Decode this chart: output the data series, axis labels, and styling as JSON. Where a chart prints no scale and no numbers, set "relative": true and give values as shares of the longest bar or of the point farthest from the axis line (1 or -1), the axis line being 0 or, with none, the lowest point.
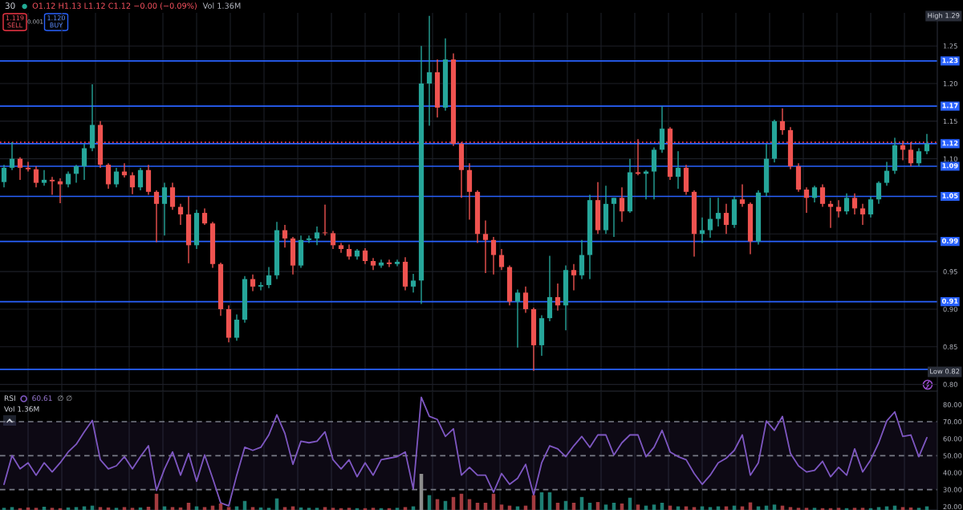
{
  "chart_data": [
    {
      "type": "candlestick",
      "title": "30",
      "annotations": [
        "O1.12 H1.13 L1.12 C1.12 −0.00 (−0.09%)",
        "Vol 1.36M",
        "1.119",
        "SELL",
        "0.001",
        "1.120",
        "BUY",
        "High 1.29",
        "Low 0.82"
      ],
      "categories": [
        null,
        null,
        null,
        null,
        null,
        null,
        null,
        null,
        null,
        null,
        null,
        null,
        null,
        null,
        null,
        null,
        null,
        null,
        null,
        null,
        null,
        null,
        null,
        null,
        null,
        null,
        null,
        null,
        null,
        null,
        null,
        null,
        null,
        null,
        null,
        null,
        null,
        null,
        null,
        null,
        null,
        null,
        null,
        null,
        null,
        null,
        null,
        null,
        null,
        null,
        null,
        null,
        null,
        null,
        null,
        null,
        null,
        null,
        null,
        null,
        null,
        null,
        null,
        null,
        null,
        null,
        null,
        null,
        null,
        null,
        null,
        null,
        null,
        null,
        null,
        null,
        null,
        null,
        null,
        null,
        null,
        null,
        null,
        null,
        null,
        null,
        null,
        null,
        null,
        null,
        null,
        null,
        null,
        null,
        null,
        null,
        null,
        null,
        null,
        null,
        null,
        null,
        null,
        null,
        null,
        null,
        null,
        null,
        null,
        null,
        null,
        null,
        null,
        null,
        null,
        null
      ],
      "ohlc": [
        [
          1.069,
          1.092,
          1.062,
          1.088
        ],
        [
          1.088,
          1.122,
          1.085,
          1.1
        ],
        [
          1.1,
          1.102,
          1.072,
          1.088
        ],
        [
          1.088,
          1.096,
          1.083,
          1.086
        ],
        [
          1.086,
          1.09,
          1.062,
          1.068
        ],
        [
          1.068,
          1.085,
          1.064,
          1.072
        ],
        [
          1.072,
          1.076,
          1.052,
          1.07
        ],
        [
          1.07,
          1.074,
          1.041,
          1.066
        ],
        [
          1.066,
          1.083,
          1.062,
          1.08
        ],
        [
          1.08,
          1.092,
          1.068,
          1.09
        ],
        [
          1.09,
          1.12,
          1.072,
          1.114
        ],
        [
          1.114,
          1.199,
          1.11,
          1.145
        ],
        [
          1.145,
          1.15,
          1.088,
          1.092
        ],
        [
          1.092,
          1.094,
          1.06,
          1.066
        ],
        [
          1.066,
          1.088,
          1.062,
          1.083
        ],
        [
          1.083,
          1.094,
          1.075,
          1.078
        ],
        [
          1.078,
          1.082,
          1.053,
          1.062
        ],
        [
          1.062,
          1.088,
          1.058,
          1.085
        ],
        [
          1.085,
          1.092,
          1.052,
          1.056
        ],
        [
          1.056,
          1.058,
          0.989,
          1.04
        ],
        [
          1.04,
          1.068,
          0.998,
          1.062
        ],
        [
          1.062,
          1.068,
          1.032,
          1.036
        ],
        [
          1.036,
          1.04,
          1.012,
          1.026
        ],
        [
          1.026,
          1.05,
          0.961,
          0.985
        ],
        [
          0.985,
          1.032,
          0.98,
          1.028
        ],
        [
          1.028,
          1.034,
          1.012,
          1.014
        ],
        [
          1.014,
          1.016,
          0.955,
          0.96
        ],
        [
          0.96,
          0.962,
          0.891,
          0.9
        ],
        [
          0.9,
          0.905,
          0.856,
          0.862
        ],
        [
          0.862,
          0.893,
          0.858,
          0.886
        ],
        [
          0.886,
          0.944,
          0.882,
          0.94
        ],
        [
          0.94,
          0.946,
          0.924,
          0.93
        ],
        [
          0.93,
          0.936,
          0.925,
          0.932
        ],
        [
          0.932,
          0.956,
          0.928,
          0.945
        ],
        [
          0.945,
          1.016,
          0.94,
          1.005
        ],
        [
          1.005,
          1.012,
          0.982,
          0.994
        ],
        [
          0.994,
          0.996,
          0.946,
          0.958
        ],
        [
          0.958,
          0.998,
          0.955,
          0.992
        ],
        [
          0.992,
          0.998,
          0.988,
          0.994
        ],
        [
          0.994,
          1.01,
          0.985,
          1.002
        ],
        [
          1.002,
          1.039,
          0.998,
          1.001
        ],
        [
          1.001,
          1.004,
          0.98,
          0.985
        ],
        [
          0.985,
          0.988,
          0.975,
          0.98
        ],
        [
          0.98,
          0.986,
          0.966,
          0.97
        ],
        [
          0.97,
          0.98,
          0.966,
          0.978
        ],
        [
          0.978,
          0.981,
          0.96,
          0.964
        ],
        [
          0.964,
          0.968,
          0.952,
          0.958
        ],
        [
          0.958,
          0.966,
          0.955,
          0.962
        ],
        [
          0.962,
          0.966,
          0.956,
          0.96
        ],
        [
          0.96,
          0.966,
          0.957,
          0.963
        ],
        [
          0.963,
          0.969,
          0.925,
          0.93
        ],
        [
          0.93,
          0.947,
          0.922,
          0.938
        ],
        [
          0.938,
          1.25,
          0.907,
          1.2
        ],
        [
          1.2,
          1.29,
          1.144,
          1.215
        ],
        [
          1.215,
          1.232,
          1.155,
          1.168
        ],
        [
          1.168,
          1.26,
          1.164,
          1.232
        ],
        [
          1.232,
          1.24,
          1.117,
          1.12
        ],
        [
          1.12,
          1.122,
          1.048,
          1.085
        ],
        [
          1.085,
          1.094,
          1.019,
          1.056
        ],
        [
          1.056,
          1.058,
          0.988,
          1.0
        ],
        [
          1.0,
          1.018,
          0.948,
          0.992
        ],
        [
          0.992,
          0.996,
          0.946,
          0.972
        ],
        [
          0.972,
          0.98,
          0.952,
          0.956
        ],
        [
          0.956,
          0.958,
          0.905,
          0.91
        ],
        [
          0.91,
          0.926,
          0.849,
          0.922
        ],
        [
          0.922,
          0.93,
          0.895,
          0.9
        ],
        [
          0.9,
          0.902,
          0.818,
          0.852
        ],
        [
          0.852,
          0.892,
          0.838,
          0.888
        ],
        [
          0.888,
          0.971,
          0.884,
          0.916
        ],
        [
          0.916,
          0.934,
          0.898,
          0.905
        ],
        [
          0.905,
          0.958,
          0.872,
          0.952
        ],
        [
          0.952,
          0.96,
          0.925,
          0.945
        ],
        [
          0.945,
          0.992,
          0.94,
          0.972
        ],
        [
          0.972,
          1.052,
          0.94,
          1.045
        ],
        [
          1.045,
          1.069,
          1.0,
          1.005
        ],
        [
          1.005,
          1.064,
          1.0,
          1.04
        ],
        [
          1.04,
          1.048,
          0.996,
          1.048
        ],
        [
          1.048,
          1.062,
          1.016,
          1.03
        ],
        [
          1.03,
          1.1,
          1.028,
          1.082
        ],
        [
          1.082,
          1.126,
          1.078,
          1.08
        ],
        [
          1.08,
          1.085,
          1.046,
          1.083
        ],
        [
          1.083,
          1.115,
          1.046,
          1.112
        ],
        [
          1.112,
          1.17,
          1.108,
          1.14
        ],
        [
          1.14,
          1.142,
          1.072,
          1.076
        ],
        [
          1.076,
          1.11,
          1.06,
          1.088
        ],
        [
          1.088,
          1.092,
          1.052,
          1.056
        ],
        [
          1.056,
          1.058,
          0.97,
          1.0
        ],
        [
          1.0,
          1.022,
          0.988,
          1.005
        ],
        [
          1.005,
          1.048,
          0.995,
          1.02
        ],
        [
          1.02,
          1.048,
          1.01,
          1.028
        ],
        [
          1.028,
          1.04,
          1.0,
          1.012
        ],
        [
          1.012,
          1.05,
          1.008,
          1.046
        ],
        [
          1.046,
          1.066,
          1.036,
          1.04
        ],
        [
          1.04,
          1.042,
          0.973,
          0.99
        ],
        [
          0.99,
          1.058,
          0.986,
          1.055
        ],
        [
          1.055,
          1.12,
          1.05,
          1.1
        ],
        [
          1.1,
          1.152,
          1.095,
          1.15
        ],
        [
          1.15,
          1.167,
          1.132,
          1.138
        ],
        [
          1.138,
          1.142,
          1.086,
          1.09
        ],
        [
          1.09,
          1.094,
          1.056,
          1.059
        ],
        [
          1.059,
          1.062,
          1.028,
          1.048
        ],
        [
          1.048,
          1.064,
          1.042,
          1.062
        ],
        [
          1.062,
          1.066,
          1.036,
          1.04
        ],
        [
          1.04,
          1.044,
          1.008,
          1.036
        ],
        [
          1.036,
          1.045,
          1.022,
          1.03
        ],
        [
          1.03,
          1.054,
          1.026,
          1.048
        ],
        [
          1.048,
          1.054,
          1.026,
          1.034
        ],
        [
          1.034,
          1.04,
          1.012,
          1.026
        ],
        [
          1.026,
          1.05,
          1.022,
          1.046
        ],
        [
          1.046,
          1.07,
          1.04,
          1.068
        ],
        [
          1.068,
          1.096,
          1.064,
          1.084
        ],
        [
          1.084,
          1.128,
          1.08,
          1.118
        ],
        [
          1.118,
          1.124,
          1.098,
          1.112
        ],
        [
          1.112,
          1.122,
          1.09,
          1.094
        ],
        [
          1.094,
          1.114,
          1.09,
          1.11
        ],
        [
          1.11,
          1.133,
          1.106,
          1.12
        ]
      ],
      "colors": [
        "#26a69a",
        "#26a69a",
        "#ef5350",
        "#ef5350",
        "#ef5350",
        "#26a69a",
        "#ef5350",
        "#ef5350",
        "#26a69a",
        "#26a69a",
        "#26a69a",
        "#26a69a",
        "#ef5350",
        "#ef5350",
        "#26a69a",
        "#ef5350",
        "#ef5350",
        "#26a69a",
        "#ef5350",
        "#ef5350",
        "#26a69a",
        "#ef5350",
        "#ef5350",
        "#ef5350",
        "#26a69a",
        "#ef5350",
        "#ef5350",
        "#ef5350",
        "#ef5350",
        "#26a69a",
        "#26a69a",
        "#ef5350",
        "#26a69a",
        "#26a69a",
        "#26a69a",
        "#ef5350",
        "#ef5350",
        "#26a69a",
        "#26a69a",
        "#26a69a",
        "#ef5350",
        "#ef5350",
        "#ef5350",
        "#ef5350",
        "#26a69a",
        "#ef5350",
        "#ef5350",
        "#26a69a",
        "#ef5350",
        "#26a69a",
        "#ef5350",
        "#26a69a",
        "#26a69a",
        "#26a69a",
        "#ef5350",
        "#26a69a",
        "#ef5350",
        "#ef5350",
        "#ef5350",
        "#ef5350",
        "#ef5350",
        "#ef5350",
        "#ef5350",
        "#ef5350",
        "#26a69a",
        "#ef5350",
        "#ef5350",
        "#26a69a",
        "#26a69a",
        "#ef5350",
        "#26a69a",
        "#ef5350",
        "#26a69a",
        "#26a69a",
        "#ef5350",
        "#26a69a",
        "#26a69a",
        "#ef5350",
        "#26a69a",
        "#ef5350",
        "#26a69a",
        "#26a69a",
        "#26a69a",
        "#ef5350",
        "#26a69a",
        "#ef5350",
        "#ef5350",
        "#26a69a",
        "#26a69a",
        "#26a69a",
        "#ef5350",
        "#26a69a",
        "#ef5350",
        "#ef5350",
        "#26a69a",
        "#26a69a",
        "#26a69a",
        "#ef5350",
        "#ef5350",
        "#ef5350",
        "#ef5350",
        "#26a69a",
        "#ef5350",
        "#ef5350",
        "#ef5350",
        "#26a69a",
        "#ef5350",
        "#ef5350",
        "#26a69a",
        "#26a69a",
        "#26a69a",
        "#26a69a",
        "#ef5350",
        "#ef5350",
        "#26a69a",
        "#26a69a"
      ],
      "ylim": [
        0.791,
        1.294
      ],
      "yticks": [
        {
          "value": 0.8,
          "label": "0.80"
        },
        0.85,
        {
          "value": 0.9,
          "label": "0.90"
        },
        0.95,
        {
          "value": 1.0,
          "label": null
        },
        {
          "value": 1.05,
          "label": null
        },
        {
          "value": 1.1,
          "label": "1.10"
        },
        1.15,
        {
          "value": 1.2,
          "label": "1.20"
        },
        1.25
      ],
      "ref_lines": [
        {
          "axis": "y",
          "value": 1.23,
          "label": "1.23",
          "color": "#2962ff"
        },
        {
          "axis": "y",
          "value": 1.17,
          "label": "1.17",
          "color": "#2962ff"
        },
        {
          "axis": "y",
          "value": 1.12,
          "label": "1.12",
          "color": "#2962ff"
        },
        {
          "axis": "y",
          "value": 1.09,
          "label": "1.09",
          "color": "#2962ff"
        },
        {
          "axis": "y",
          "value": 1.05,
          "label": "1.05",
          "color": "#2962ff"
        },
        {
          "axis": "y",
          "value": 0.99,
          "label": "0.99",
          "color": "#2962ff"
        },
        {
          "axis": "y",
          "value": 0.91,
          "label": "0.91",
          "color": "#2962ff"
        },
        {
          "axis": "y",
          "value": 0.82,
          "color": "#2962ff"
        },
        {
          "axis": "y",
          "value": 1.122,
          "color": "#f23645",
          "line_style": "dotted"
        }
      ],
      "grid": true,
      "tick_labels": "y"
    },
    {
      "type": "line",
      "annotations": [
        "RSI",
        "60.61",
        "∅ ∅"
      ],
      "categories": [
        null,
        null,
        null,
        null,
        null,
        null,
        null,
        null,
        null,
        null,
        null,
        null,
        null,
        null,
        null,
        null,
        null,
        null,
        null,
        null,
        null,
        null,
        null,
        null,
        null,
        null,
        null,
        null,
        null,
        null,
        null,
        null,
        null,
        null,
        null,
        null,
        null,
        null,
        null,
        null,
        null,
        null,
        null,
        null,
        null,
        null,
        null,
        null,
        null,
        null,
        null,
        null,
        null,
        null,
        null,
        null,
        null,
        null,
        null,
        null,
        null,
        null,
        null,
        null,
        null,
        null,
        null,
        null,
        null,
        null,
        null,
        null,
        null,
        null,
        null,
        null,
        null,
        null,
        null,
        null,
        null,
        null,
        null,
        null,
        null,
        null,
        null,
        null,
        null,
        null,
        null,
        null,
        null,
        null,
        null,
        null,
        null,
        null,
        null,
        null,
        null,
        null,
        null,
        null,
        null,
        null,
        null,
        null,
        null,
        null,
        null,
        null,
        null,
        null,
        null,
        null
      ],
      "series": [
        {
          "color": "#7e57c2",
          "values": [
            33.1,
            50.0,
            42.2,
            45.8,
            38.5,
            45.8,
            40.4,
            45.8,
            52.2,
            56.7,
            64.0,
            70.7,
            47.6,
            42.2,
            44.0,
            49.4,
            42.2,
            49.4,
            55.8,
            29.5,
            42.2,
            52.2,
            38.5,
            51.3,
            34.9,
            50.4,
            36.7,
            22.2,
            20.4,
            38.5,
            54.9,
            53.1,
            54.9,
            62.2,
            74.0,
            63.1,
            44.9,
            58.5,
            57.6,
            58.5,
            64.0,
            47.6,
            42.2,
            47.6,
            37.6,
            45.8,
            38.5,
            47.6,
            48.5,
            49.4,
            52.2,
            30.4,
            84.4,
            73.1,
            71.3,
            61.3,
            65.8,
            38.5,
            43.1,
            38.5,
            38.5,
            28.5,
            39.5,
            33.1,
            36.7,
            44.9,
            26.7,
            45.8,
            55.8,
            54.0,
            49.4,
            55.8,
            61.3,
            54.9,
            62.2,
            62.2,
            50.4,
            57.6,
            62.2,
            62.2,
            49.4,
            54.9,
            64.9,
            52.2,
            49.4,
            47.6,
            39.5,
            33.1,
            38.5,
            45.8,
            48.5,
            53.1,
            62.2,
            38.5,
            45.8,
            70.4,
            64.9,
            73.1,
            51.3,
            44.0,
            40.4,
            41.3,
            46.7,
            37.6,
            43.1,
            38.5,
            54.0,
            40.4,
            47.6,
            57.6,
            70.4,
            75.8,
            61.3,
            62.2,
            49.4,
            60.6
          ]
        }
      ],
      "ylim": [
        18,
        87.5
      ],
      "yticks": [
        {
          "value": 20,
          "label": "20.00"
        },
        {
          "value": 30,
          "label": "30.00"
        },
        {
          "value": 40,
          "label": "40.00"
        },
        {
          "value": 50,
          "label": "50.00"
        },
        {
          "value": 60,
          "label": "60.00"
        },
        {
          "value": 70,
          "label": "70.00"
        },
        {
          "value": 80,
          "label": "80.00"
        }
      ],
      "ref_lines": [
        {
          "axis": "y",
          "value": 70,
          "color": "#787b86",
          "line_style": "dashed"
        },
        {
          "axis": "y",
          "value": 50,
          "color": "#787b86",
          "line_style": "dashed"
        },
        {
          "axis": "y",
          "value": 30,
          "color": "#787b86",
          "line_style": "dashed"
        }
      ],
      "bands": [
        {
          "axis": "y",
          "from": 30,
          "to": 70,
          "color": "#7e57c2"
        }
      ],
      "grid": "x",
      "tick_labels": "y"
    },
    {
      "type": "bar",
      "relative": true,
      "annotations": [
        "Vol 1.36M"
      ],
      "categories": [
        null,
        null,
        null,
        null,
        null,
        null,
        null,
        null,
        null,
        null,
        null,
        null,
        null,
        null,
        null,
        null,
        null,
        null,
        null,
        null,
        null,
        null,
        null,
        null,
        null,
        null,
        null,
        null,
        null,
        null,
        null,
        null,
        null,
        null,
        null,
        null,
        null,
        null,
        null,
        null,
        null,
        null,
        null,
        null,
        null,
        null,
        null,
        null,
        null,
        null,
        null,
        null,
        null,
        null,
        null,
        null,
        null,
        null,
        null,
        null,
        null,
        null,
        null,
        null,
        null,
        null,
        null,
        null,
        null,
        null,
        null,
        null,
        null,
        null,
        null,
        null,
        null,
        null,
        null,
        null,
        null,
        null,
        null,
        null,
        null,
        null,
        null,
        null,
        null,
        null,
        null,
        null,
        null,
        null,
        null,
        null,
        null,
        null,
        null,
        null,
        null,
        null,
        null,
        null,
        null,
        null,
        null,
        null,
        null,
        null,
        null,
        null,
        null,
        null,
        null,
        null
      ],
      "values": [
        0.06,
        0.08,
        0.05,
        0.07,
        0.06,
        0.09,
        0.06,
        0.05,
        0.07,
        0.08,
        0.1,
        0.12,
        0.08,
        0.07,
        0.06,
        0.08,
        0.06,
        0.07,
        0.09,
        0.45,
        0.1,
        0.08,
        0.07,
        0.2,
        0.1,
        0.08,
        0.12,
        0.18,
        0.08,
        0.1,
        0.25,
        0.08,
        0.07,
        0.06,
        0.32,
        0.08,
        0.1,
        0.07,
        0.06,
        0.06,
        0.08,
        0.06,
        0.05,
        0.06,
        0.05,
        0.05,
        0.06,
        0.05,
        0.05,
        0.06,
        0.08,
        0.1,
        1,
        0.41,
        0.3,
        0.25,
        0.36,
        0.45,
        0.3,
        0.2,
        0.2,
        0.45,
        0.15,
        0.12,
        0.1,
        0.12,
        0.41,
        0.49,
        0.49,
        0.2,
        0.25,
        0.2,
        0.36,
        0.2,
        0.22,
        0.15,
        0.2,
        0.18,
        0.34,
        0.15,
        0.12,
        0.15,
        0.2,
        0.12,
        0.1,
        0.1,
        0.08,
        0.1,
        0.08,
        0.1,
        0.1,
        0.12,
        0.1,
        0.21,
        0.1,
        0.12,
        0.15,
        0.12,
        0.08,
        0.06,
        0.06,
        0.06,
        0.05,
        0.05,
        0.06,
        0.05,
        0.06,
        0.06,
        0.05,
        0.08,
        0.1,
        0.12,
        0.08,
        0.07,
        0.06,
        0.1
      ],
      "colors": [
        "#1d7f73",
        "#1d7f73",
        "#a33b3f",
        "#a33b3f",
        "#a33b3f",
        "#1d7f73",
        "#a33b3f",
        "#a33b3f",
        "#1d7f73",
        "#1d7f73",
        "#1d7f73",
        "#1d7f73",
        "#a33b3f",
        "#a33b3f",
        "#1d7f73",
        "#a33b3f",
        "#a33b3f",
        "#1d7f73",
        "#a33b3f",
        "#a33b3f",
        "#1d7f73",
        "#a33b3f",
        "#a33b3f",
        "#a33b3f",
        "#1d7f73",
        "#a33b3f",
        "#a33b3f",
        "#a33b3f",
        "#a33b3f",
        "#1d7f73",
        "#1d7f73",
        "#a33b3f",
        "#1d7f73",
        "#1d7f73",
        "#1d7f73",
        "#a33b3f",
        "#a33b3f",
        "#1d7f73",
        "#1d7f73",
        "#1d7f73",
        "#a33b3f",
        "#a33b3f",
        "#a33b3f",
        "#a33b3f",
        "#1d7f73",
        "#a33b3f",
        "#a33b3f",
        "#1d7f73",
        "#a33b3f",
        "#1d7f73",
        "#a33b3f",
        "#1d7f73",
        "#8c8c8c",
        "#1d7f73",
        "#a33b3f",
        "#1d7f73",
        "#a33b3f",
        "#a33b3f",
        "#a33b3f",
        "#a33b3f",
        "#a33b3f",
        "#a33b3f",
        "#a33b3f",
        "#a33b3f",
        "#1d7f73",
        "#a33b3f",
        "#a33b3f",
        "#1d7f73",
        "#1d7f73",
        "#a33b3f",
        "#1d7f73",
        "#a33b3f",
        "#1d7f73",
        "#1d7f73",
        "#a33b3f",
        "#1d7f73",
        "#1d7f73",
        "#a33b3f",
        "#1d7f73",
        "#a33b3f",
        "#1d7f73",
        "#1d7f73",
        "#1d7f73",
        "#a33b3f",
        "#1d7f73",
        "#a33b3f",
        "#a33b3f",
        "#1d7f73",
        "#1d7f73",
        "#1d7f73",
        "#a33b3f",
        "#1d7f73",
        "#a33b3f",
        "#a33b3f",
        "#1d7f73",
        "#1d7f73",
        "#1d7f73",
        "#a33b3f",
        "#a33b3f",
        "#a33b3f",
        "#a33b3f",
        "#1d7f73",
        "#a33b3f",
        "#a33b3f",
        "#a33b3f",
        "#1d7f73",
        "#a33b3f",
        "#a33b3f",
        "#1d7f73",
        "#1d7f73",
        "#1d7f73",
        "#1d7f73",
        "#a33b3f",
        "#a33b3f",
        "#1d7f73",
        "#1d7f73"
      ],
      "tick_labels": false
    }
  ]
}
